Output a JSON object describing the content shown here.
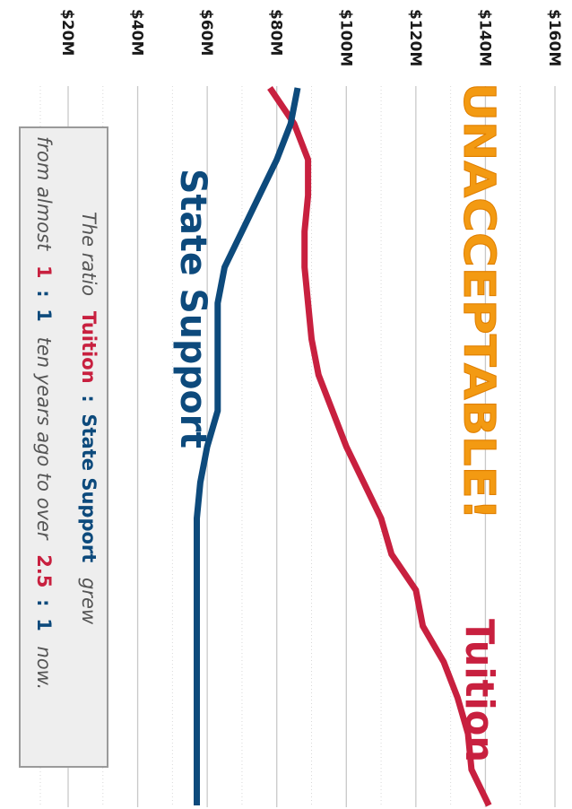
{
  "chart_data": {
    "type": "line",
    "orientation": "rotated 90 degrees clockwise",
    "y_ticks": [
      "$20M",
      "$40M",
      "$60M",
      "$80M",
      "$100M",
      "$120M",
      "$140M",
      "$160M"
    ],
    "y_tick_values": [
      20,
      40,
      60,
      80,
      100,
      120,
      140,
      160
    ],
    "y_unit": "$M",
    "ylim": [
      12,
      165
    ],
    "x": [
      0,
      1,
      2,
      3,
      4,
      5,
      6,
      7,
      8,
      9,
      10,
      11,
      12,
      13,
      14,
      15,
      16,
      17,
      18,
      19,
      20
    ],
    "xlim": [
      0,
      20
    ],
    "grid": true,
    "series": [
      {
        "name": "Tuition",
        "color": "#c8203f",
        "values": [
          78,
          85,
          89,
          89,
          88,
          88,
          89,
          90,
          92,
          96,
          100,
          105,
          110,
          113,
          120,
          122,
          128,
          132,
          135,
          136,
          141
        ]
      },
      {
        "name": "State Support",
        "color": "#0d4a7c",
        "values": [
          86,
          84,
          80,
          75,
          70,
          65,
          63,
          63,
          63,
          63,
          60,
          58,
          57,
          57,
          57,
          57,
          57,
          57,
          57,
          57,
          57
        ]
      }
    ],
    "annotation": {
      "headline": "UNACCEPTABLE!",
      "headline_color": "#f39a12",
      "note": {
        "part1": "The ratio",
        "tuition": "Tuition",
        "colon": ":",
        "state": "State Support",
        "part2": "grew",
        "line2_a": "from almost",
        "ratio_old_a": "1",
        "ratio_old_b": "1",
        "line2_b": "ten years ago to over",
        "ratio_new_a": "2.5",
        "ratio_new_b": "1",
        "line2_c": "now."
      }
    }
  }
}
